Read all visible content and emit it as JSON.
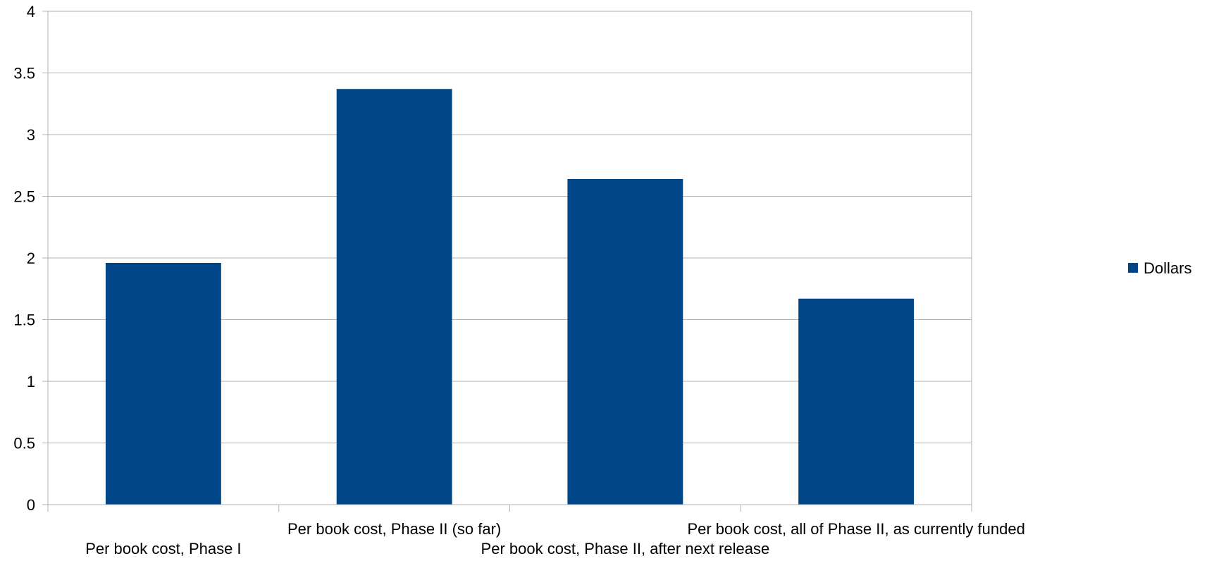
{
  "chart_data": {
    "type": "bar",
    "categories": [
      "Per book cost, Phase I",
      "Per book cost, Phase II (so far)",
      "Per book cost, Phase II, after next release",
      "Per book cost, all of Phase II, as currently funded"
    ],
    "series": [
      {
        "name": "Dollars",
        "values": [
          1.96,
          3.37,
          2.64,
          1.67
        ],
        "color": "#004586"
      }
    ],
    "ylim": [
      0,
      4
    ],
    "yticks": [
      "0",
      "0.5",
      "1",
      "1.5",
      "2",
      "2.5",
      "3",
      "3.5",
      "4"
    ],
    "grid": true,
    "legend": "right",
    "colors": {
      "gridline": "#b3b3b3",
      "axis": "#b3b3b3"
    }
  }
}
